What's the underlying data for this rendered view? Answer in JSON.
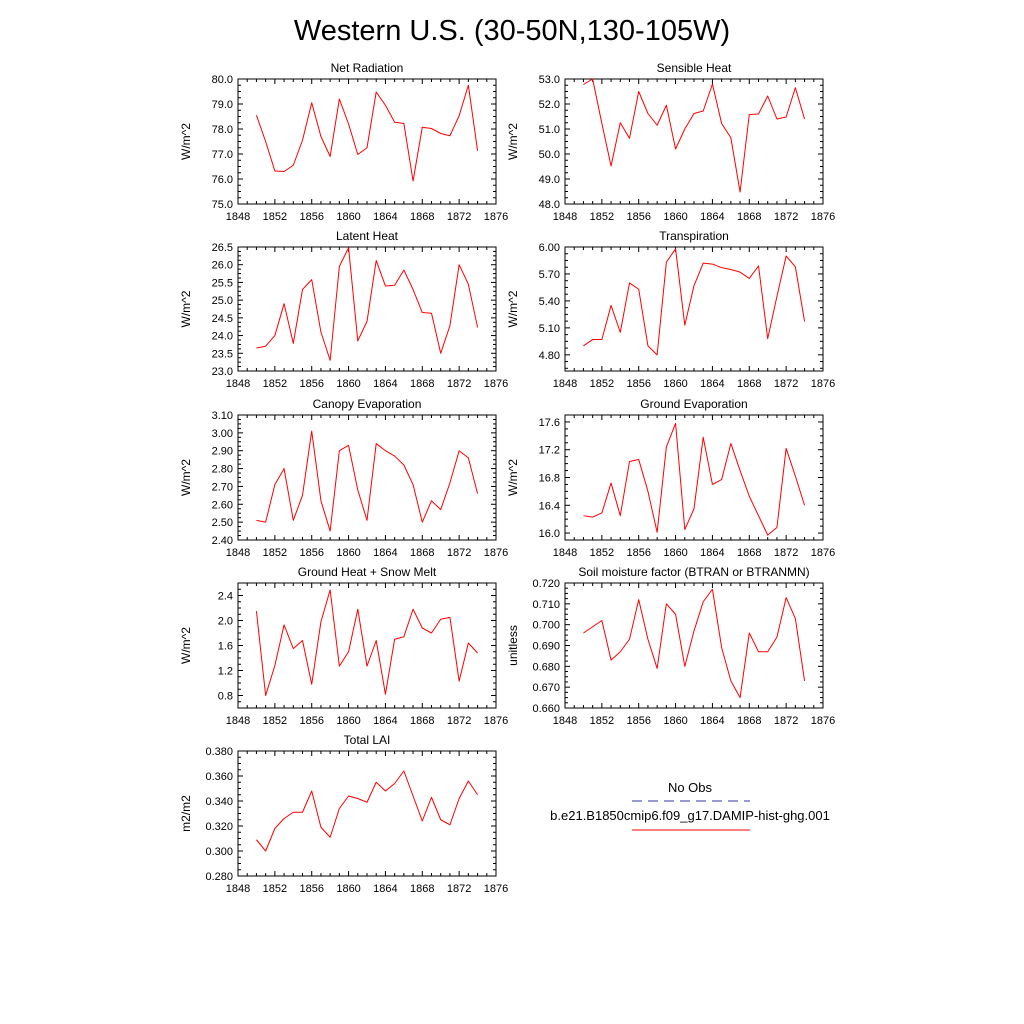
{
  "figure": {
    "title": "Western U.S. (30-50N,130-105W)"
  },
  "legend": {
    "entries": [
      {
        "label": "No Obs",
        "color": "#3333aa",
        "style": "dashed"
      },
      {
        "label": "b.e21.B1850cmip6.f09_g17.DAMIP-hist-ghg.001",
        "color": "#ff0000",
        "style": "solid"
      }
    ]
  },
  "colors": {
    "series": "#ff0000",
    "obs": "#3333aa",
    "axes": "#000000"
  },
  "chart_data": [
    {
      "type": "line",
      "title": "Net Radiation",
      "ylabel": "W/m^2",
      "xlim": [
        1848,
        1876
      ],
      "ylim": [
        75.0,
        80.0
      ],
      "xticks": [
        1848,
        1852,
        1856,
        1860,
        1864,
        1868,
        1872,
        1876
      ],
      "yticks": [
        "75.0",
        "76.0",
        "77.0",
        "78.0",
        "79.0",
        "80.0"
      ],
      "grid": false,
      "x": [
        1850,
        1851,
        1852,
        1853,
        1854,
        1855,
        1856,
        1857,
        1858,
        1859,
        1860,
        1861,
        1862,
        1863,
        1864,
        1865,
        1866,
        1867,
        1868,
        1869,
        1870,
        1871,
        1872,
        1873,
        1874
      ],
      "series": [
        {
          "values": [
            78.55,
            77.5,
            76.32,
            76.3,
            76.55,
            77.55,
            79.05,
            77.7,
            76.9,
            79.2,
            78.2,
            76.98,
            77.25,
            79.48,
            78.95,
            78.27,
            78.22,
            75.92,
            78.07,
            78.02,
            77.82,
            77.73,
            78.53,
            79.75,
            77.13
          ]
        }
      ]
    },
    {
      "type": "line",
      "title": "Sensible Heat",
      "ylabel": "W/m^2",
      "xlim": [
        1848,
        1876
      ],
      "ylim": [
        48.0,
        53.0
      ],
      "xticks": [
        1848,
        1852,
        1856,
        1860,
        1864,
        1868,
        1872,
        1876
      ],
      "yticks": [
        "48.0",
        "49.0",
        "50.0",
        "51.0",
        "52.0",
        "53.0"
      ],
      "grid": false,
      "x": [
        1850,
        1851,
        1852,
        1853,
        1854,
        1855,
        1856,
        1857,
        1858,
        1859,
        1860,
        1861,
        1862,
        1863,
        1864,
        1865,
        1866,
        1867,
        1868,
        1869,
        1870,
        1871,
        1872,
        1873,
        1874
      ],
      "series": [
        {
          "values": [
            52.78,
            53.0,
            51.22,
            49.52,
            51.25,
            50.63,
            52.5,
            51.62,
            51.15,
            51.95,
            50.2,
            51.0,
            51.62,
            51.72,
            52.8,
            51.22,
            50.65,
            48.48,
            51.58,
            51.6,
            52.32,
            51.4,
            51.48,
            52.65,
            51.4
          ]
        }
      ]
    },
    {
      "type": "line",
      "title": "Latent Heat",
      "ylabel": "W/m^2",
      "xlim": [
        1848,
        1876
      ],
      "ylim": [
        23.0,
        26.5
      ],
      "xticks": [
        1848,
        1852,
        1856,
        1860,
        1864,
        1868,
        1872,
        1876
      ],
      "yticks": [
        "23.0",
        "23.5",
        "24.0",
        "24.5",
        "25.0",
        "25.5",
        "26.0",
        "26.5"
      ],
      "grid": false,
      "x": [
        1850,
        1851,
        1852,
        1853,
        1854,
        1855,
        1856,
        1857,
        1858,
        1859,
        1860,
        1861,
        1862,
        1863,
        1864,
        1865,
        1866,
        1867,
        1868,
        1869,
        1870,
        1871,
        1872,
        1873,
        1874
      ],
      "series": [
        {
          "values": [
            23.65,
            23.7,
            24.0,
            24.9,
            23.78,
            25.3,
            25.58,
            24.1,
            23.3,
            25.95,
            26.48,
            23.85,
            24.4,
            26.12,
            25.4,
            25.42,
            25.85,
            25.3,
            24.65,
            24.63,
            23.5,
            24.28,
            26.0,
            25.45,
            24.23
          ]
        }
      ]
    },
    {
      "type": "line",
      "title": "Transpiration",
      "ylabel": "W/m^2",
      "xlim": [
        1848,
        1876
      ],
      "ylim": [
        4.62,
        6.0
      ],
      "xticks": [
        1848,
        1852,
        1856,
        1860,
        1864,
        1868,
        1872,
        1876
      ],
      "yticks": [
        "4.80",
        "5.10",
        "5.40",
        "5.70",
        "6.00"
      ],
      "grid": false,
      "x": [
        1850,
        1851,
        1852,
        1853,
        1854,
        1855,
        1856,
        1857,
        1858,
        1859,
        1860,
        1861,
        1862,
        1863,
        1864,
        1865,
        1866,
        1867,
        1868,
        1869,
        1870,
        1871,
        1872,
        1873,
        1874
      ],
      "series": [
        {
          "values": [
            4.9,
            4.97,
            4.97,
            5.35,
            5.05,
            5.6,
            5.53,
            4.9,
            4.8,
            5.83,
            5.98,
            5.13,
            5.57,
            5.82,
            5.81,
            5.77,
            5.75,
            5.72,
            5.65,
            5.79,
            4.98,
            5.45,
            5.9,
            5.78,
            5.17
          ]
        }
      ]
    },
    {
      "type": "line",
      "title": "Canopy Evaporation",
      "ylabel": "W/m^2",
      "xlim": [
        1848,
        1876
      ],
      "ylim": [
        2.4,
        3.1
      ],
      "xticks": [
        1848,
        1852,
        1856,
        1860,
        1864,
        1868,
        1872,
        1876
      ],
      "yticks": [
        "2.40",
        "2.50",
        "2.60",
        "2.70",
        "2.80",
        "2.90",
        "3.00",
        "3.10"
      ],
      "grid": false,
      "x": [
        1850,
        1851,
        1852,
        1853,
        1854,
        1855,
        1856,
        1857,
        1858,
        1859,
        1860,
        1861,
        1862,
        1863,
        1864,
        1865,
        1866,
        1867,
        1868,
        1869,
        1870,
        1871,
        1872,
        1873,
        1874
      ],
      "series": [
        {
          "values": [
            2.51,
            2.5,
            2.71,
            2.8,
            2.51,
            2.65,
            3.01,
            2.62,
            2.45,
            2.9,
            2.93,
            2.68,
            2.51,
            2.94,
            2.9,
            2.87,
            2.82,
            2.71,
            2.5,
            2.62,
            2.57,
            2.72,
            2.9,
            2.86,
            2.66
          ]
        }
      ]
    },
    {
      "type": "line",
      "title": "Ground Evaporation",
      "ylabel": "W/m^2",
      "xlim": [
        1848,
        1876
      ],
      "ylim": [
        15.9,
        17.7
      ],
      "xticks": [
        1848,
        1852,
        1856,
        1860,
        1864,
        1868,
        1872,
        1876
      ],
      "yticks": [
        "16.0",
        "16.4",
        "16.8",
        "17.2",
        "17.6"
      ],
      "grid": false,
      "x": [
        1850,
        1851,
        1852,
        1853,
        1854,
        1855,
        1856,
        1857,
        1858,
        1859,
        1860,
        1861,
        1862,
        1863,
        1864,
        1865,
        1866,
        1867,
        1868,
        1869,
        1870,
        1871,
        1872,
        1873,
        1874
      ],
      "series": [
        {
          "values": [
            16.25,
            16.23,
            16.29,
            16.72,
            16.25,
            17.03,
            17.06,
            16.6,
            16.01,
            17.24,
            17.58,
            16.05,
            16.35,
            17.38,
            16.7,
            16.77,
            17.29,
            16.9,
            16.53,
            16.25,
            15.97,
            16.08,
            17.22,
            16.82,
            16.4
          ]
        }
      ]
    },
    {
      "type": "line",
      "title": "Ground Heat + Snow Melt",
      "ylabel": "W/m^2",
      "xlim": [
        1848,
        1876
      ],
      "ylim": [
        0.6,
        2.6
      ],
      "xticks": [
        1848,
        1852,
        1856,
        1860,
        1864,
        1868,
        1872,
        1876
      ],
      "yticks": [
        "0.8",
        "1.2",
        "1.6",
        "2.0",
        "2.4"
      ],
      "grid": false,
      "x": [
        1850,
        1851,
        1852,
        1853,
        1854,
        1855,
        1856,
        1857,
        1858,
        1859,
        1860,
        1861,
        1862,
        1863,
        1864,
        1865,
        1866,
        1867,
        1868,
        1869,
        1870,
        1871,
        1872,
        1873,
        1874
      ],
      "series": [
        {
          "values": [
            2.15,
            0.8,
            1.28,
            1.93,
            1.55,
            1.68,
            0.98,
            1.98,
            2.49,
            1.27,
            1.5,
            2.18,
            1.27,
            1.68,
            0.82,
            1.7,
            1.74,
            2.18,
            1.88,
            1.8,
            2.02,
            2.05,
            1.03,
            1.64,
            1.48
          ]
        }
      ]
    },
    {
      "type": "line",
      "title": "Soil moisture factor (BTRAN or BTRANMN)",
      "ylabel": "unitless",
      "xlim": [
        1848,
        1876
      ],
      "ylim": [
        0.66,
        0.72
      ],
      "xticks": [
        1848,
        1852,
        1856,
        1860,
        1864,
        1868,
        1872,
        1876
      ],
      "yticks": [
        "0.660",
        "0.670",
        "0.680",
        "0.690",
        "0.700",
        "0.710",
        "0.720"
      ],
      "grid": false,
      "x": [
        1850,
        1851,
        1852,
        1853,
        1854,
        1855,
        1856,
        1857,
        1858,
        1859,
        1860,
        1861,
        1862,
        1863,
        1864,
        1865,
        1866,
        1867,
        1868,
        1869,
        1870,
        1871,
        1872,
        1873,
        1874
      ],
      "series": [
        {
          "values": [
            0.696,
            0.699,
            0.702,
            0.683,
            0.687,
            0.693,
            0.712,
            0.693,
            0.679,
            0.71,
            0.705,
            0.68,
            0.697,
            0.711,
            0.717,
            0.689,
            0.673,
            0.665,
            0.696,
            0.687,
            0.687,
            0.694,
            0.713,
            0.703,
            0.673
          ]
        }
      ]
    },
    {
      "type": "line",
      "title": "Total LAI",
      "ylabel": "m2/m2",
      "xlim": [
        1848,
        1876
      ],
      "ylim": [
        0.28,
        0.38
      ],
      "xticks": [
        1848,
        1852,
        1856,
        1860,
        1864,
        1868,
        1872,
        1876
      ],
      "yticks": [
        "0.280",
        "0.300",
        "0.320",
        "0.340",
        "0.360",
        "0.380"
      ],
      "grid": false,
      "x": [
        1850,
        1851,
        1852,
        1853,
        1854,
        1855,
        1856,
        1857,
        1858,
        1859,
        1860,
        1861,
        1862,
        1863,
        1864,
        1865,
        1866,
        1867,
        1868,
        1869,
        1870,
        1871,
        1872,
        1873,
        1874
      ],
      "series": [
        {
          "values": [
            0.309,
            0.3,
            0.318,
            0.326,
            0.331,
            0.331,
            0.348,
            0.319,
            0.311,
            0.334,
            0.344,
            0.342,
            0.339,
            0.355,
            0.348,
            0.354,
            0.364,
            0.344,
            0.324,
            0.343,
            0.325,
            0.321,
            0.342,
            0.356,
            0.345
          ]
        }
      ]
    }
  ]
}
